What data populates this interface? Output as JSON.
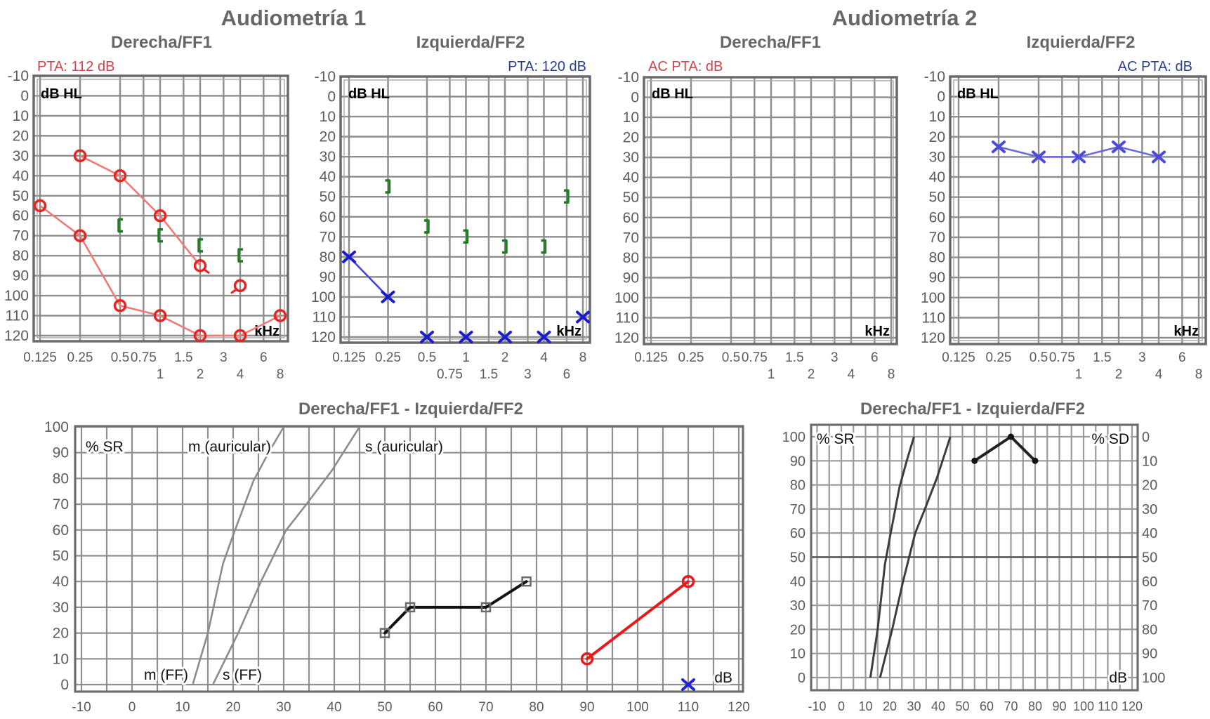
{
  "headings": [
    "Audiometría 1",
    "Audiometría 2"
  ],
  "chart_data": [
    {
      "type": "audiogram",
      "group": "Audiometría 1",
      "title": "Derecha/FF1",
      "annotation": "PTA: 112 dB",
      "annotation_color": "#c9474b",
      "ylabel": "dB HL",
      "xlabel": "kHz",
      "x_scale": "log2",
      "xlim": [
        0.125,
        8
      ],
      "ylim": [
        -10,
        120
      ],
      "y_inverted": true,
      "grid": true,
      "x_grid": [
        0.125,
        0.25,
        0.5,
        0.75,
        1,
        1.5,
        2,
        3,
        4,
        6,
        8
      ],
      "y_ticks": [
        -10,
        0,
        10,
        20,
        30,
        40,
        50,
        60,
        70,
        80,
        90,
        100,
        110,
        120
      ],
      "x_ticks_top": [
        0.125,
        0.25,
        0.5,
        0.75,
        1.5,
        3,
        6
      ],
      "x_ticks_bottom": [
        1,
        2,
        4,
        8
      ],
      "series": [
        {
          "marker": "circle",
          "color": "#e52521",
          "line_color": "#ef7b78",
          "connected": true,
          "points": [
            {
              "x": 0.25,
              "y": 30
            },
            {
              "x": 0.5,
              "y": 40
            },
            {
              "x": 1,
              "y": 60
            },
            {
              "x": 2,
              "y": 85,
              "tail": "down-right"
            }
          ]
        },
        {
          "marker": "circle",
          "color": "#e52521",
          "line_color": "#ef7b78",
          "connected": true,
          "points": [
            {
              "x": 0.125,
              "y": 55
            },
            {
              "x": 0.25,
              "y": 70
            },
            {
              "x": 0.5,
              "y": 105
            },
            {
              "x": 1,
              "y": 110
            },
            {
              "x": 2,
              "y": 120
            },
            {
              "x": 4,
              "y": 120
            },
            {
              "x": 8,
              "y": 110
            }
          ]
        },
        {
          "marker": "circle",
          "color": "#e52521",
          "connected": false,
          "points": [
            {
              "x": 4,
              "y": 95,
              "tail": "down-left"
            }
          ]
        },
        {
          "marker": "bracket-left",
          "color": "#1f7d22",
          "connected": false,
          "points": [
            {
              "x": 0.5,
              "y": 65
            },
            {
              "x": 1,
              "y": 70
            },
            {
              "x": 2,
              "y": 75
            },
            {
              "x": 4,
              "y": 80
            }
          ]
        }
      ]
    },
    {
      "type": "audiogram",
      "group": "Audiometría 1",
      "title": "Izquierda/FF2",
      "annotation": "PTA: 120 dB",
      "annotation_color": "#2b3f8c",
      "ylabel": "dB HL",
      "xlabel": "kHz",
      "x_scale": "log2",
      "xlim": [
        0.125,
        8
      ],
      "ylim": [
        -10,
        120
      ],
      "y_inverted": true,
      "grid": true,
      "x_grid": [
        0.125,
        0.25,
        0.5,
        0.75,
        1,
        1.5,
        2,
        3,
        4,
        6,
        8
      ],
      "y_ticks": [
        -10,
        0,
        10,
        20,
        30,
        40,
        50,
        60,
        70,
        80,
        90,
        100,
        110,
        120
      ],
      "x_ticks_top": [
        0.125,
        0.25,
        0.5,
        1,
        2,
        4,
        8
      ],
      "x_ticks_bottom": [
        0.75,
        1.5,
        3,
        6
      ],
      "series": [
        {
          "marker": "x",
          "color": "#1c1ccf",
          "line_color": "#4545d6",
          "connected": true,
          "points": [
            {
              "x": 0.125,
              "y": 80
            },
            {
              "x": 0.25,
              "y": 100
            }
          ]
        },
        {
          "marker": "x",
          "color": "#1c1ccf",
          "connected": false,
          "points": [
            {
              "x": 0.5,
              "y": 120
            },
            {
              "x": 1,
              "y": 120
            },
            {
              "x": 2,
              "y": 120
            },
            {
              "x": 4,
              "y": 120
            },
            {
              "x": 8,
              "y": 110
            }
          ]
        },
        {
          "marker": "bracket-right",
          "color": "#1f7d22",
          "connected": false,
          "points": [
            {
              "x": 0.25,
              "y": 45
            },
            {
              "x": 0.5,
              "y": 65
            },
            {
              "x": 1,
              "y": 70
            },
            {
              "x": 2,
              "y": 75
            },
            {
              "x": 4,
              "y": 75
            },
            {
              "x": 6,
              "y": 50
            }
          ]
        }
      ]
    },
    {
      "type": "audiogram",
      "group": "Audiometría 2",
      "title": "Derecha/FF1",
      "annotation": "AC PTA: dB",
      "annotation_color": "#c9474b",
      "ylabel": "dB HL",
      "xlabel": "kHz",
      "x_scale": "log2",
      "xlim": [
        0.125,
        8
      ],
      "ylim": [
        -10,
        120
      ],
      "y_inverted": true,
      "grid": true,
      "x_grid": [
        0.125,
        0.25,
        0.5,
        0.75,
        1,
        1.5,
        2,
        3,
        4,
        6,
        8
      ],
      "y_ticks": [
        -10,
        0,
        10,
        20,
        30,
        40,
        50,
        60,
        70,
        80,
        90,
        100,
        110,
        120
      ],
      "x_ticks_top": [
        0.125,
        0.25,
        0.5,
        0.75,
        1.5,
        3,
        6
      ],
      "x_ticks_bottom": [
        1,
        2,
        4,
        8
      ],
      "series": []
    },
    {
      "type": "audiogram",
      "group": "Audiometría 2",
      "title": "Izquierda/FF2",
      "annotation": "AC PTA: dB",
      "annotation_color": "#2b3f8c",
      "ylabel": "dB HL",
      "xlabel": "kHz",
      "x_scale": "log2",
      "xlim": [
        0.125,
        8
      ],
      "ylim": [
        -10,
        120
      ],
      "y_inverted": true,
      "grid": true,
      "x_grid": [
        0.125,
        0.25,
        0.5,
        0.75,
        1,
        1.5,
        2,
        3,
        4,
        6,
        8
      ],
      "y_ticks": [
        -10,
        0,
        10,
        20,
        30,
        40,
        50,
        60,
        70,
        80,
        90,
        100,
        110,
        120
      ],
      "x_ticks_top": [
        0.125,
        0.25,
        0.5,
        0.75,
        1.5,
        3,
        6
      ],
      "x_ticks_bottom": [
        1,
        2,
        4,
        8
      ],
      "series": [
        {
          "marker": "x",
          "color": "#4b4bdb",
          "line_color": "#6a6ae0",
          "connected": true,
          "points": [
            {
              "x": 0.25,
              "y": 25
            },
            {
              "x": 0.5,
              "y": 30
            },
            {
              "x": 1,
              "y": 30
            },
            {
              "x": 2,
              "y": 25
            },
            {
              "x": 4,
              "y": 30
            }
          ]
        }
      ]
    },
    {
      "type": "line",
      "title": "Derecha/FF1 - Izquierda/FF2",
      "ylabel": "% SR",
      "xlabel": "dB",
      "xlim": [
        -10,
        120
      ],
      "ylim": [
        0,
        100
      ],
      "grid": true,
      "x_grid_step": 5,
      "y_grid_step": 10,
      "x_ticks": [
        -10,
        0,
        10,
        20,
        30,
        40,
        50,
        60,
        70,
        80,
        90,
        100,
        110,
        120
      ],
      "y_ticks": [
        0,
        10,
        20,
        30,
        40,
        50,
        60,
        70,
        80,
        90,
        100
      ],
      "reference_curves": [
        {
          "label_top": "m (auricular)",
          "label_bottom": "m (FF)",
          "color": "#8c8c8c",
          "points": [
            [
              12,
              0
            ],
            [
              15,
              20
            ],
            [
              18,
              47
            ],
            [
              20,
              58
            ],
            [
              24,
              79
            ],
            [
              27,
              90
            ],
            [
              30,
              100
            ]
          ]
        },
        {
          "label_top": "s (auricular)",
          "label_bottom": "s (FF)",
          "color": "#8c8c8c",
          "points": [
            [
              16,
              0
            ],
            [
              21,
              20
            ],
            [
              25.5,
              40
            ],
            [
              28,
              50
            ],
            [
              30.5,
              60
            ],
            [
              34.5,
              70
            ],
            [
              39.5,
              83
            ],
            [
              45,
              100
            ]
          ]
        }
      ],
      "series": [
        {
          "marker": "square",
          "color": "#6a6a6a",
          "line_color": "#111111",
          "connected": true,
          "points": [
            {
              "x": 50,
              "y": 20
            },
            {
              "x": 55,
              "y": 30
            },
            {
              "x": 70,
              "y": 30
            },
            {
              "x": 78,
              "y": 40
            }
          ]
        },
        {
          "marker": "circle",
          "color": "#e61a1a",
          "line_color": "#e61a1a",
          "connected": true,
          "points": [
            {
              "x": 90,
              "y": 10
            },
            {
              "x": 110,
              "y": 40
            }
          ]
        },
        {
          "marker": "x",
          "color": "#2323d3",
          "connected": false,
          "points": [
            {
              "x": 110,
              "y": 0
            }
          ]
        }
      ]
    },
    {
      "type": "line",
      "title": "Derecha/FF1 - Izquierda/FF2",
      "ylabel": "% SR",
      "ylabel_right": "% SD",
      "xlabel": "dB",
      "xlim": [
        -10,
        120
      ],
      "ylim": [
        0,
        100
      ],
      "grid": true,
      "x_grid_step": 5,
      "y_grid_step": 10,
      "highlight_line_y": 50,
      "x_ticks": [
        -10,
        0,
        10,
        20,
        30,
        40,
        50,
        60,
        70,
        80,
        90,
        100,
        110,
        120
      ],
      "y_ticks": [
        0,
        10,
        20,
        30,
        40,
        50,
        60,
        70,
        80,
        90,
        100
      ],
      "y_ticks_right": [
        0,
        10,
        20,
        30,
        40,
        50,
        60,
        70,
        80,
        90,
        100
      ],
      "y_right_inverted": true,
      "reference_curves": [
        {
          "color": "#3d3d3d",
          "points": [
            [
              12,
              0
            ],
            [
              15,
              20
            ],
            [
              18,
              47
            ],
            [
              20,
              58
            ],
            [
              24,
              79
            ],
            [
              27,
              90
            ],
            [
              30,
              100
            ]
          ]
        },
        {
          "color": "#3d3d3d",
          "points": [
            [
              16,
              0
            ],
            [
              21,
              20
            ],
            [
              25.5,
              40
            ],
            [
              28,
              50
            ],
            [
              30.5,
              60
            ],
            [
              34.5,
              70
            ],
            [
              39.5,
              83
            ],
            [
              45,
              100
            ]
          ]
        }
      ],
      "series": [
        {
          "marker": "dot",
          "color": "#111111",
          "line_color": "#222222",
          "connected": true,
          "points": [
            {
              "x": 55,
              "y": 90
            },
            {
              "x": 70,
              "y": 100
            },
            {
              "x": 80,
              "y": 90
            }
          ]
        }
      ]
    }
  ]
}
